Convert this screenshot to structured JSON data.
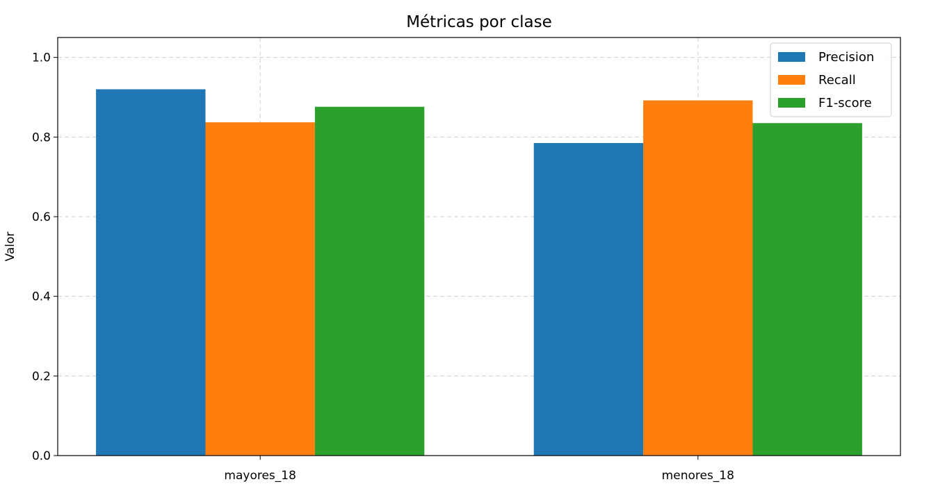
{
  "chart_data": {
    "type": "bar",
    "title": "Métricas por clase",
    "xlabel": "",
    "ylabel": "Valor",
    "categories": [
      "mayores_18",
      "menores_18"
    ],
    "series": [
      {
        "name": "Precision",
        "values": [
          0.92,
          0.785
        ],
        "color": "#1f77b4"
      },
      {
        "name": "Recall",
        "values": [
          0.837,
          0.892
        ],
        "color": "#ff7f0e"
      },
      {
        "name": "F1-score",
        "values": [
          0.876,
          0.835
        ],
        "color": "#2ca02c"
      }
    ],
    "ylim": [
      0,
      1.05
    ],
    "yticks": [
      0.0,
      0.2,
      0.4,
      0.6,
      0.8,
      1.0
    ],
    "ytick_labels": [
      "0.0",
      "0.2",
      "0.4",
      "0.6",
      "0.8",
      "1.0"
    ],
    "grid": true,
    "legend_position": "top-right"
  }
}
